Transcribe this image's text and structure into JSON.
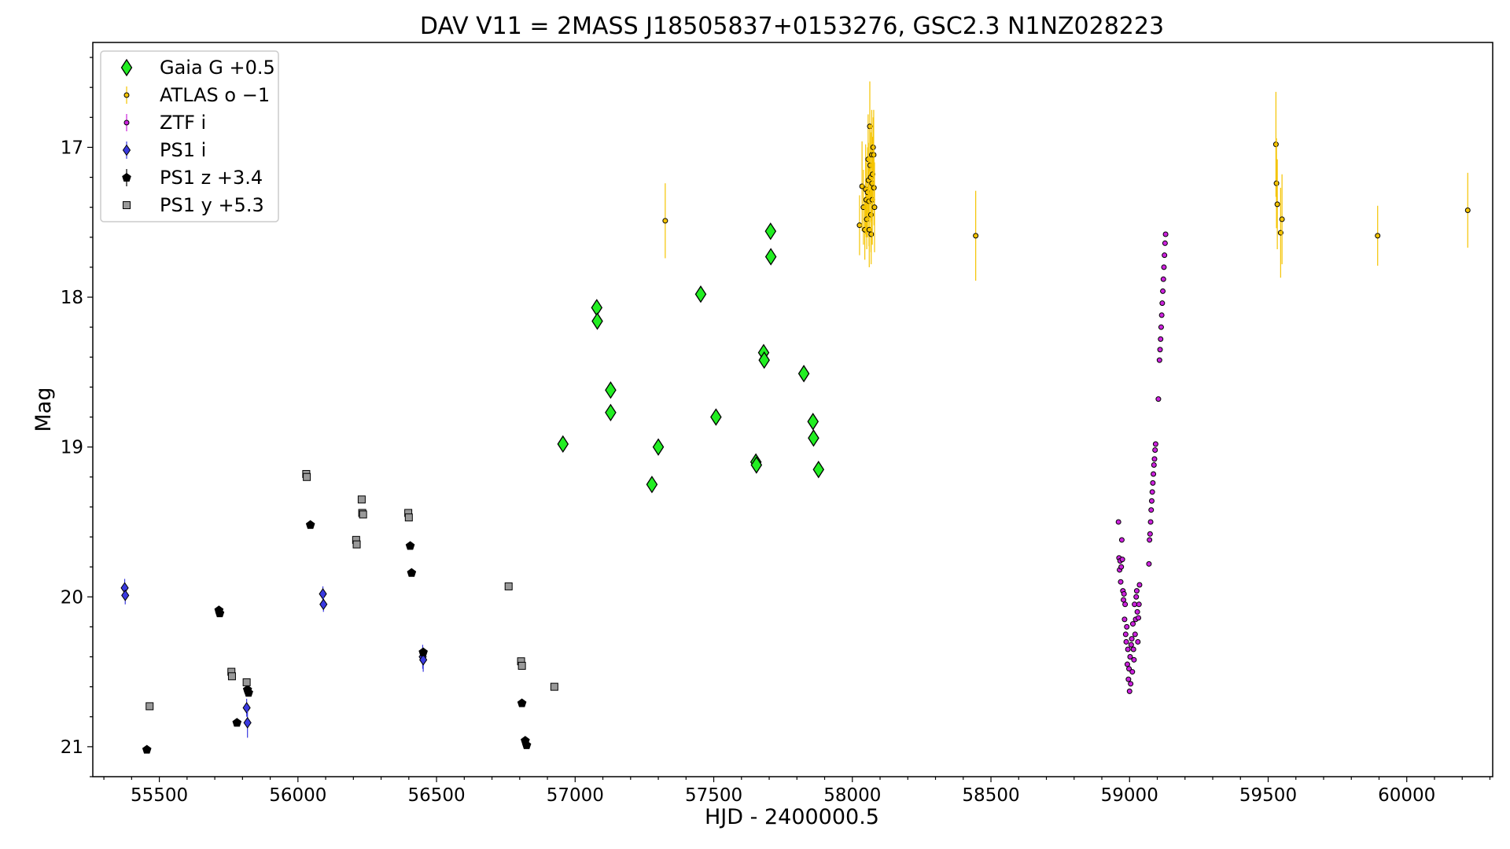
{
  "chart_data": {
    "type": "scatter",
    "title": "DAV V11 = 2MASS J18505837+0153276, GSC2.3 N1NZ028223",
    "xlabel": "HJD - 2400000.5",
    "ylabel": "Mag",
    "xlim": [
      55260,
      60310
    ],
    "ylim": [
      21.2,
      16.3
    ],
    "y_inverted": true,
    "x_ticks": [
      55500,
      56000,
      56500,
      57000,
      57500,
      58000,
      58500,
      59000,
      59500,
      60000
    ],
    "y_ticks": [
      17,
      18,
      19,
      20,
      21
    ],
    "legend_position": "upper-left",
    "grid": false,
    "series": [
      {
        "name": "Gaia G +0.5",
        "marker": "diamond",
        "color": "#22ee22",
        "edge": "#000000",
        "points": [
          [
            56956,
            18.98
          ],
          [
            57078,
            18.07
          ],
          [
            57080,
            18.16
          ],
          [
            57128,
            18.62
          ],
          [
            57128,
            18.77
          ],
          [
            57277,
            19.25
          ],
          [
            57300,
            19.0
          ],
          [
            57453,
            17.98
          ],
          [
            57508,
            18.8
          ],
          [
            57652,
            19.1
          ],
          [
            57654,
            19.12
          ],
          [
            57680,
            18.37
          ],
          [
            57682,
            18.42
          ],
          [
            57705,
            17.56
          ],
          [
            57706,
            17.73
          ],
          [
            57825,
            18.51
          ],
          [
            57858,
            18.83
          ],
          [
            57860,
            18.94
          ],
          [
            57878,
            19.15
          ]
        ]
      },
      {
        "name": "ATLAS o −1",
        "marker": "circle-small",
        "color": "#f5c400",
        "edge": "#000000",
        "points": [
          [
            57325,
            17.49,
            0.25
          ],
          [
            58026,
            17.52,
            0.2
          ],
          [
            58035,
            17.26,
            0.3
          ],
          [
            58040,
            17.4,
            0.25
          ],
          [
            58045,
            17.55,
            0.2
          ],
          [
            58048,
            17.28,
            0.3
          ],
          [
            58050,
            17.35,
            0.25
          ],
          [
            58052,
            17.48,
            0.2
          ],
          [
            58055,
            17.3,
            0.3
          ],
          [
            58057,
            17.08,
            0.3
          ],
          [
            58058,
            17.22,
            0.25
          ],
          [
            58060,
            17.36,
            0.3
          ],
          [
            58061,
            17.55,
            0.25
          ],
          [
            58063,
            16.86,
            0.3
          ],
          [
            58064,
            17.12,
            0.25
          ],
          [
            58066,
            17.2,
            0.3
          ],
          [
            58067,
            17.45,
            0.25
          ],
          [
            58068,
            17.58,
            0.2
          ],
          [
            58070,
            17.05,
            0.3
          ],
          [
            58071,
            17.24,
            0.25
          ],
          [
            58072,
            17.35,
            0.3
          ],
          [
            58073,
            17.18,
            0.25
          ],
          [
            58075,
            17.0,
            0.2
          ],
          [
            58077,
            17.05,
            0.3
          ],
          [
            58078,
            17.27,
            0.25
          ],
          [
            58080,
            17.4,
            0.3
          ],
          [
            58445,
            17.59,
            0.3
          ],
          [
            59528,
            16.98,
            0.35
          ],
          [
            59530,
            17.24,
            0.3
          ],
          [
            59533,
            17.38,
            0.3
          ],
          [
            59545,
            17.57,
            0.3
          ],
          [
            59550,
            17.48,
            0.3
          ],
          [
            59895,
            17.59,
            0.2
          ],
          [
            60220,
            17.42,
            0.25
          ]
        ]
      },
      {
        "name": "ZTF i",
        "marker": "circle-small",
        "color": "#cc22dd",
        "edge": "#000000",
        "points": [
          [
            58960,
            19.5
          ],
          [
            58962,
            19.74
          ],
          [
            58964,
            19.82
          ],
          [
            58966,
            19.76
          ],
          [
            58968,
            19.9
          ],
          [
            58970,
            19.8
          ],
          [
            58972,
            19.62
          ],
          [
            58974,
            19.75
          ],
          [
            58976,
            19.96
          ],
          [
            58978,
            20.02
          ],
          [
            58980,
            19.98
          ],
          [
            58982,
            20.15
          ],
          [
            58984,
            20.05
          ],
          [
            58986,
            20.25
          ],
          [
            58988,
            20.3
          ],
          [
            58990,
            20.2
          ],
          [
            58992,
            20.45
          ],
          [
            58994,
            20.35
          ],
          [
            58996,
            20.55
          ],
          [
            58998,
            20.48
          ],
          [
            59000,
            20.63
          ],
          [
            59002,
            20.4
          ],
          [
            59004,
            20.58
          ],
          [
            59006,
            20.32
          ],
          [
            59008,
            20.28
          ],
          [
            59010,
            20.5
          ],
          [
            59012,
            20.18
          ],
          [
            59014,
            20.35
          ],
          [
            59016,
            20.42
          ],
          [
            59018,
            20.05
          ],
          [
            59020,
            20.25
          ],
          [
            59022,
            20.15
          ],
          [
            59024,
            20.0
          ],
          [
            59026,
            19.96
          ],
          [
            59028,
            20.1
          ],
          [
            59030,
            20.3
          ],
          [
            59032,
            20.14
          ],
          [
            59034,
            20.05
          ],
          [
            59036,
            19.92
          ],
          [
            59070,
            19.78
          ],
          [
            59072,
            19.62
          ],
          [
            59074,
            19.58
          ],
          [
            59076,
            19.5
          ],
          [
            59078,
            19.42
          ],
          [
            59080,
            19.36
          ],
          [
            59082,
            19.3
          ],
          [
            59084,
            19.24
          ],
          [
            59086,
            19.18
          ],
          [
            59088,
            19.12
          ],
          [
            59090,
            19.08
          ],
          [
            59092,
            19.02
          ],
          [
            59094,
            18.98
          ],
          [
            59104,
            18.68
          ],
          [
            59108,
            18.42
          ],
          [
            59110,
            18.35
          ],
          [
            59112,
            18.28
          ],
          [
            59114,
            18.2
          ],
          [
            59116,
            18.12
          ],
          [
            59118,
            18.04
          ],
          [
            59120,
            17.96
          ],
          [
            59122,
            17.88
          ],
          [
            59124,
            17.8
          ],
          [
            59126,
            17.72
          ],
          [
            59128,
            17.64
          ],
          [
            59130,
            17.58
          ]
        ]
      },
      {
        "name": "PS1 i",
        "marker": "diamond-small",
        "color": "#3a3ae0",
        "edge": "#000000",
        "points": [
          [
            55375,
            19.94,
            0.06
          ],
          [
            55377,
            19.99,
            0.06
          ],
          [
            55815,
            20.74,
            0.06
          ],
          [
            55818,
            20.84,
            0.1
          ],
          [
            56090,
            19.98,
            0.05
          ],
          [
            56092,
            20.05,
            0.05
          ],
          [
            56450,
            20.4,
            0.08
          ],
          [
            56452,
            20.42,
            0.08
          ]
        ]
      },
      {
        "name": "PS1 z +3.4",
        "marker": "pentagon",
        "color": "#000000",
        "edge": "#000000",
        "points": [
          [
            55455,
            21.02
          ],
          [
            55715,
            20.09
          ],
          [
            55718,
            20.11
          ],
          [
            55780,
            20.84
          ],
          [
            55818,
            20.62
          ],
          [
            55822,
            20.64
          ],
          [
            56045,
            19.52
          ],
          [
            56405,
            19.66
          ],
          [
            56410,
            19.84
          ],
          [
            56452,
            20.37
          ],
          [
            56808,
            20.71
          ],
          [
            56820,
            20.96
          ],
          [
            56825,
            20.99
          ]
        ]
      },
      {
        "name": "PS1 y +5.3",
        "marker": "square",
        "color": "#999999",
        "edge": "#000000",
        "points": [
          [
            55465,
            20.73
          ],
          [
            55760,
            20.5
          ],
          [
            55762,
            20.53
          ],
          [
            55815,
            20.57
          ],
          [
            56030,
            19.18
          ],
          [
            56032,
            19.2
          ],
          [
            56210,
            19.62
          ],
          [
            56212,
            19.65
          ],
          [
            56230,
            19.35
          ],
          [
            56232,
            19.44
          ],
          [
            56235,
            19.45
          ],
          [
            56398,
            19.44
          ],
          [
            56400,
            19.47
          ],
          [
            56760,
            19.93
          ],
          [
            56805,
            20.43
          ],
          [
            56808,
            20.46
          ],
          [
            56925,
            20.6
          ]
        ]
      }
    ]
  }
}
